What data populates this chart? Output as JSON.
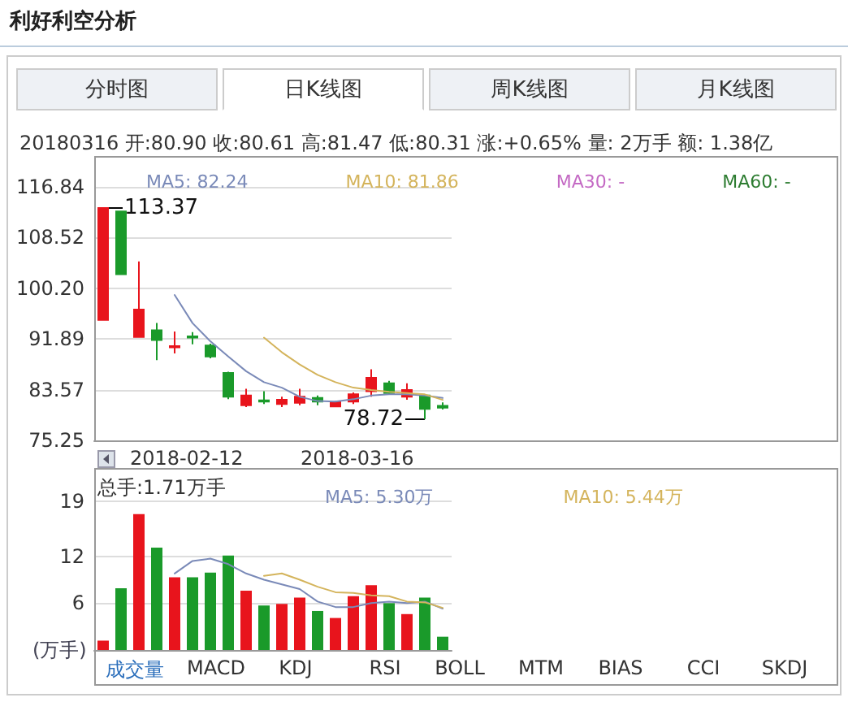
{
  "chart_data": [
    {
      "type": "candlestick",
      "title": "利好利空分析",
      "subtitle": "20180316 开:80.90 收:80.61 高:81.47 低:80.31 涨:+0.65% 量: 2万手 额: 1.38亿",
      "annotations": [
        "分时图",
        "日K线图",
        "周K线图",
        "月K线图",
        "2018-02-12",
        "2018-03-16",
        "113.37",
        "78.72"
      ],
      "categories": [
        null,
        null,
        null,
        null,
        null,
        null,
        null,
        null,
        null,
        null,
        null,
        null,
        null,
        null,
        null,
        null,
        null,
        null,
        null,
        null
      ],
      "ohlc": [
        [
          95.0,
          113.37,
          95.0,
          113.37
        ],
        [
          112.8,
          112.8,
          102.5,
          102.5
        ],
        [
          92.2,
          104.6,
          92.2,
          96.7
        ],
        [
          93.3,
          94.5,
          88.4,
          91.7
        ],
        [
          90.5,
          93.1,
          89.5,
          90.7
        ],
        [
          92.3,
          93.0,
          91.0,
          92.1
        ],
        [
          90.8,
          91.1,
          88.7,
          89.0
        ],
        [
          86.3,
          86.5,
          82.0,
          82.4
        ],
        [
          81.0,
          83.7,
          80.7,
          82.6
        ],
        [
          81.8,
          83.3,
          81.2,
          81.6
        ],
        [
          81.2,
          82.4,
          80.7,
          81.9
        ],
        [
          81.4,
          83.7,
          81.0,
          82.4
        ],
        [
          82.2,
          82.6,
          81.0,
          81.6
        ],
        [
          80.8,
          81.7,
          80.7,
          81.5
        ],
        [
          81.6,
          83.1,
          81.2,
          82.8
        ],
        [
          83.3,
          86.9,
          82.4,
          85.5
        ],
        [
          84.6,
          85.0,
          82.8,
          83.0
        ],
        [
          82.4,
          84.6,
          81.9,
          83.5
        ],
        [
          82.6,
          82.8,
          78.72,
          80.4
        ],
        [
          80.9,
          81.47,
          80.31,
          80.61
        ]
      ],
      "colors": [
        "#e8141c",
        "#1a9a2a",
        "#e8141c",
        "#1a9a2a",
        "#e8141c",
        "#1a9a2a",
        "#1a9a2a",
        "#1a9a2a",
        "#e8141c",
        "#1a9a2a",
        "#e8141c",
        "#e8141c",
        "#1a9a2a",
        "#e8141c",
        "#e8141c",
        "#e8141c",
        "#1a9a2a",
        "#e8141c",
        "#1a9a2a",
        "#1a9a2a"
      ],
      "series": [
        {
          "type": "line",
          "name": "MA5: 82.24",
          "color": "#7a8ab8",
          "values": [
            null,
            null,
            null,
            null,
            99.1,
            94.5,
            91.5,
            89.0,
            86.6,
            84.8,
            83.9,
            82.4,
            81.7,
            81.6,
            82.0,
            82.6,
            82.8,
            82.8,
            82.6,
            82.2
          ]
        },
        {
          "type": "line",
          "name": "MA10: 81.86",
          "color": "#d4b45c",
          "values": [
            null,
            null,
            null,
            null,
            null,
            null,
            null,
            null,
            null,
            92.1,
            89.7,
            87.7,
            86.0,
            84.8,
            83.9,
            83.5,
            83.2,
            83.0,
            82.8,
            81.9
          ]
        },
        {
          "type": "line",
          "name": "MA30: -",
          "color": "#c46ac4",
          "values": [
            null,
            null,
            null,
            null,
            null,
            null,
            null,
            null,
            null,
            null,
            null,
            null,
            null,
            null,
            null,
            null,
            null,
            null,
            null,
            null
          ]
        },
        {
          "type": "line",
          "name": "MA60: -",
          "color": "#2e7d32",
          "values": [
            null,
            null,
            null,
            null,
            null,
            null,
            null,
            null,
            null,
            null,
            null,
            null,
            null,
            null,
            null,
            null,
            null,
            null,
            null,
            null
          ]
        }
      ],
      "ylim": [
        75.25,
        116.84
      ],
      "yticks": [
        75.25,
        83.57,
        91.89,
        {
          "value": 100.2,
          "label": "100.20"
        },
        108.52,
        116.84
      ],
      "grid": "y",
      "legend": "top",
      "marker": "none"
    },
    {
      "type": "bar",
      "ylabel": "(万手)",
      "annotations": [
        "总手:1.71万手",
        "成交量",
        "MACD",
        "KDJ",
        "RSI",
        "BOLL",
        "MTM",
        "BIAS",
        "CCI",
        "SKDJ"
      ],
      "categories": [
        null,
        null,
        null,
        null,
        null,
        null,
        null,
        null,
        null,
        null,
        null,
        null,
        null,
        null,
        null,
        null,
        null,
        null,
        null,
        null
      ],
      "series": [
        {
          "type": "bar",
          "colors": [
            "#e8141c",
            "#1a9a2a",
            "#e8141c",
            "#1a9a2a",
            "#e8141c",
            "#1a9a2a",
            "#1a9a2a",
            "#1a9a2a",
            "#e8141c",
            "#1a9a2a",
            "#e8141c",
            "#e8141c",
            "#1a9a2a",
            "#e8141c",
            "#e8141c",
            "#e8141c",
            "#1a9a2a",
            "#e8141c",
            "#1a9a2a",
            "#1a9a2a"
          ],
          "values": [
            1.2,
            7.9,
            17.4,
            13.1,
            9.3,
            9.3,
            9.9,
            12.1,
            7.6,
            5.7,
            5.9,
            6.7,
            5.0,
            4.1,
            6.9,
            8.3,
            6.0,
            4.6,
            6.7,
            1.7
          ]
        },
        {
          "type": "line",
          "name": "MA5: 5.30万",
          "color": "#7a8ab8",
          "values": [
            null,
            null,
            null,
            null,
            9.8,
            11.4,
            11.7,
            11.0,
            9.8,
            9.0,
            8.4,
            7.8,
            6.2,
            5.5,
            5.5,
            6.0,
            6.2,
            6.0,
            6.2,
            5.3
          ]
        },
        {
          "type": "line",
          "name": "MA10: 5.44万",
          "color": "#d4b45c",
          "values": [
            null,
            null,
            null,
            null,
            null,
            null,
            null,
            null,
            null,
            9.5,
            9.8,
            9.0,
            8.1,
            7.4,
            7.3,
            7.0,
            6.9,
            6.2,
            6.1,
            5.4
          ]
        }
      ],
      "ylim": [
        0,
        23.1
      ],
      "yticks": [
        6,
        12,
        19
      ],
      "grid": "y",
      "legend": "top",
      "marker": "none"
    }
  ]
}
